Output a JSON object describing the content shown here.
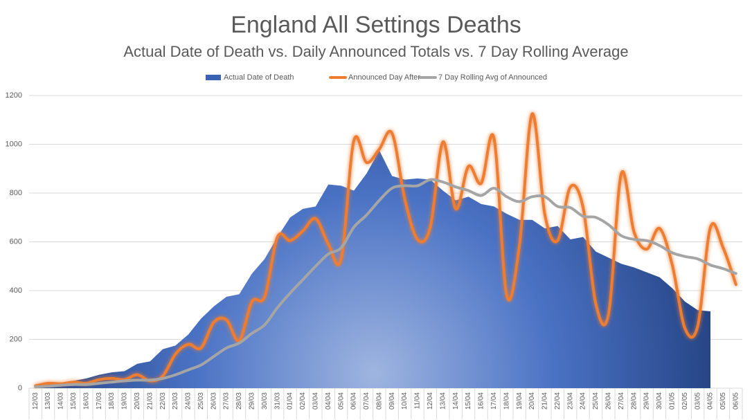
{
  "chart_data": {
    "type": "line",
    "title": "England All Settings Deaths",
    "subtitle": "Actual Date of Death vs. Daily Announced Totals vs. 7 Day Rolling Average",
    "categories": [
      "12/03",
      "13/03",
      "14/03",
      "15/03",
      "16/03",
      "17/03",
      "18/03",
      "19/03",
      "20/03",
      "21/03",
      "22/03",
      "23/03",
      "24/03",
      "25/03",
      "26/03",
      "27/03",
      "28/03",
      "29/03",
      "30/03",
      "31/03",
      "01/04",
      "02/04",
      "03/04",
      "04/04",
      "05/04",
      "06/04",
      "07/04",
      "08/04",
      "09/04",
      "10/04",
      "11/04",
      "12/04",
      "13/04",
      "14/04",
      "15/04",
      "16/04",
      "17/04",
      "18/04",
      "19/04",
      "20/04",
      "21/04",
      "22/04",
      "23/04",
      "24/04",
      "25/04",
      "26/04",
      "27/04",
      "28/04",
      "29/04",
      "30/04",
      "01/05",
      "02/05",
      "03/05",
      "04/05",
      "05/05",
      "06/05"
    ],
    "series": [
      {
        "name": "Actual Date of Death",
        "kind": "area",
        "color": "#3a62b5",
        "values": [
          10,
          15,
          20,
          30,
          40,
          55,
          65,
          70,
          100,
          110,
          160,
          175,
          220,
          285,
          335,
          375,
          385,
          470,
          530,
          620,
          700,
          735,
          745,
          835,
          830,
          810,
          880,
          975,
          870,
          855,
          860,
          855,
          810,
          770,
          785,
          755,
          745,
          715,
          690,
          690,
          655,
          665,
          610,
          620,
          560,
          535,
          510,
          495,
          475,
          455,
          410,
          355,
          320,
          315,
          null,
          null
        ]
      },
      {
        "name": "Announced Day After",
        "kind": "line",
        "color": "#ed7d31",
        "values": [
          10,
          20,
          18,
          25,
          20,
          35,
          40,
          35,
          55,
          30,
          50,
          140,
          180,
          165,
          270,
          280,
          195,
          355,
          375,
          620,
          605,
          645,
          695,
          590,
          530,
          1015,
          925,
          980,
          1045,
          775,
          610,
          660,
          1010,
          735,
          910,
          840,
          1025,
          380,
          585,
          1125,
          710,
          605,
          825,
          740,
          345,
          305,
          880,
          640,
          570,
          655,
          505,
          245,
          255,
          660,
          575,
          425
        ]
      },
      {
        "name": "7 Day Rolling Avg of Announced",
        "kind": "line",
        "color": "#a5a5a5",
        "values": [
          5,
          8,
          12,
          15,
          15,
          20,
          25,
          30,
          33,
          33,
          40,
          55,
          75,
          95,
          130,
          165,
          185,
          225,
          260,
          330,
          390,
          445,
          500,
          550,
          575,
          660,
          710,
          770,
          820,
          830,
          830,
          855,
          845,
          825,
          810,
          790,
          820,
          785,
          765,
          785,
          785,
          745,
          740,
          705,
          700,
          670,
          625,
          610,
          605,
          585,
          555,
          540,
          530,
          505,
          490,
          470
        ]
      }
    ],
    "ylim": [
      0,
      1200
    ],
    "yticks": [
      0,
      200,
      400,
      600,
      800,
      1000,
      1200
    ],
    "grid": true,
    "legend": "top"
  }
}
